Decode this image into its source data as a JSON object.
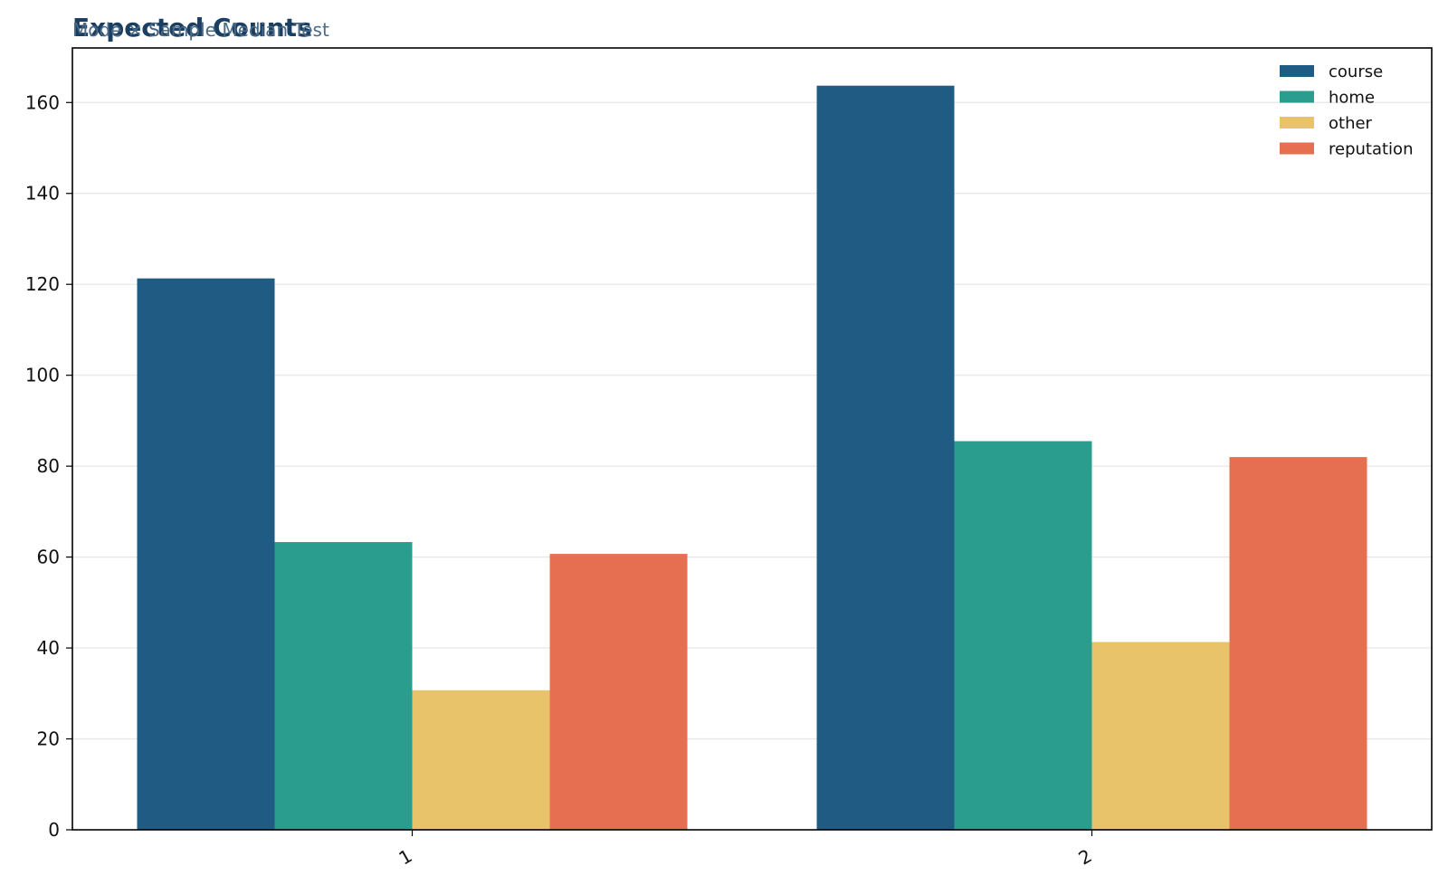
{
  "chart_data": {
    "type": "bar",
    "title": "Expected Counts",
    "subtitle": "Mode × Sample Median Test",
    "xlabel": "",
    "ylabel": "",
    "categories": [
      "1",
      "2"
    ],
    "series": [
      {
        "name": "course",
        "color": "#1f5b82",
        "values": [
          121.3,
          163.7
        ]
      },
      {
        "name": "home",
        "color": "#2a9d8f",
        "values": [
          63.3,
          85.5
        ]
      },
      {
        "name": "other",
        "color": "#e8c36a",
        "values": [
          30.7,
          41.3
        ]
      },
      {
        "name": "reputation",
        "color": "#e76f51",
        "values": [
          60.7,
          82.0
        ]
      }
    ],
    "ylim": [
      0,
      172
    ],
    "yticks": [
      0,
      20,
      40,
      60,
      80,
      100,
      120,
      140,
      160
    ],
    "grid": "y",
    "legend_position": "top-right"
  }
}
